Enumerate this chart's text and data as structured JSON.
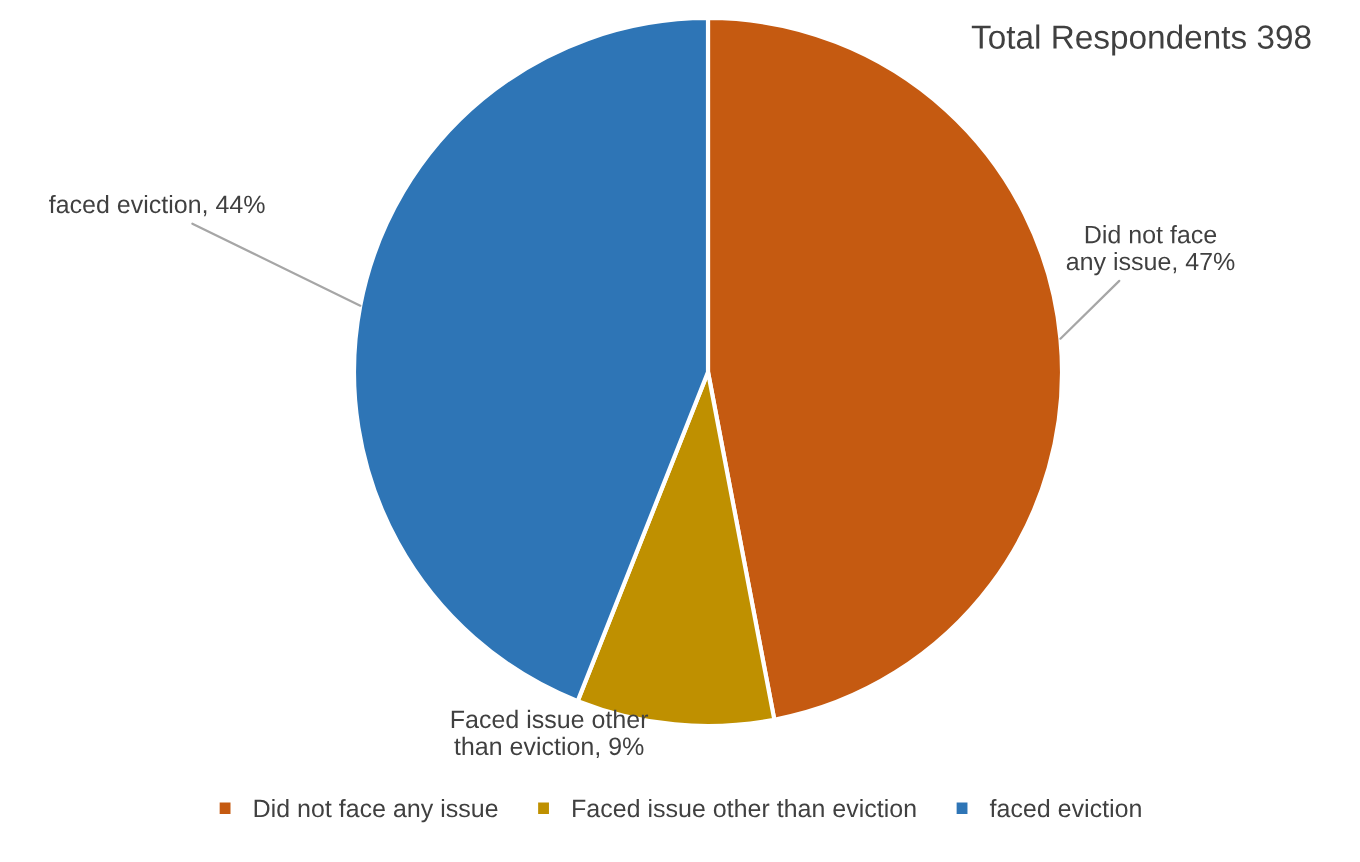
{
  "chart_data": {
    "type": "pie",
    "title": "Total Respondents 398",
    "categories": [
      "Did not face any issue",
      "Faced issue other than eviction",
      "faced eviction"
    ],
    "values": [
      47,
      9,
      44
    ],
    "colors": [
      "#c55a11",
      "#bf9000",
      "#2e75b6"
    ],
    "value_labels": [
      "Did not face any issue, 47%",
      "Faced issue other than eviction, 9%",
      "faced eviction, 44%"
    ],
    "legend": "bottom"
  }
}
